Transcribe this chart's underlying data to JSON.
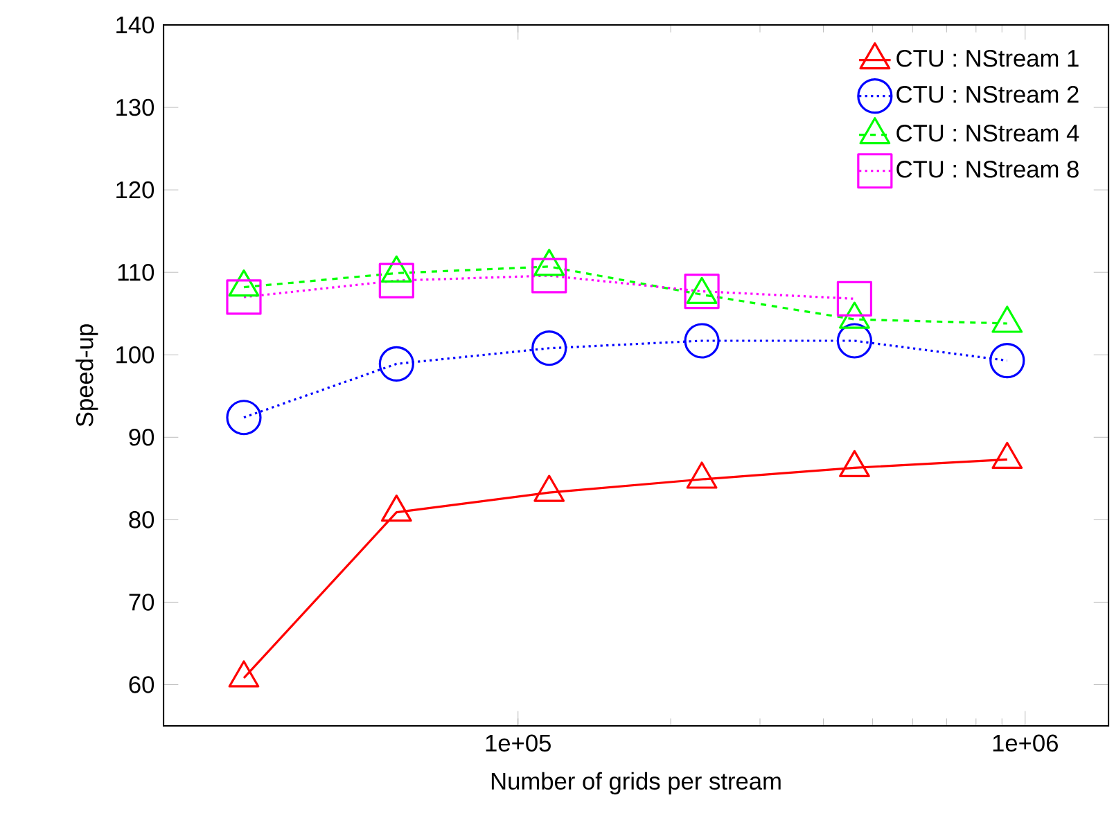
{
  "chart_data": {
    "type": "line",
    "xlabel": "Number of grids per stream",
    "ylabel": "Speed-up",
    "log": "x",
    "xlim": [
      20000,
      1460000
    ],
    "xticks": [
      {
        "value": 100000,
        "label": "1e+05"
      },
      {
        "value": 1000000,
        "label": "1e+06"
      }
    ],
    "ylim": [
      55,
      140
    ],
    "yticks": [
      60,
      70,
      80,
      90,
      100,
      110,
      120,
      130,
      140
    ],
    "legend": "top right",
    "series": [
      {
        "name": "CTU : NStream 1",
        "color": "#ff0000",
        "marker": "triangle",
        "line_style": "solid",
        "x": [
          28800,
          57600,
          115200,
          230400,
          460800,
          921600
        ],
        "values": [
          60.8,
          80.9,
          83.3,
          84.9,
          86.3,
          87.3
        ]
      },
      {
        "name": "CTU : NStream 2",
        "color": "#0000ff",
        "marker": "circle",
        "line_style": "dotted",
        "x": [
          28800,
          57600,
          115200,
          230400,
          460800,
          921600
        ],
        "values": [
          92.4,
          98.9,
          100.8,
          101.7,
          101.7,
          99.3
        ]
      },
      {
        "name": "CTU : NStream 4",
        "color": "#00ff00",
        "marker": "triangle",
        "line_style": "dashed",
        "x": [
          28800,
          57600,
          115200,
          230400,
          460800,
          921600
        ],
        "values": [
          108.2,
          109.9,
          110.7,
          107.3,
          104.3,
          103.8
        ]
      },
      {
        "name": "CTU : NStream 8",
        "color": "#ff00ff",
        "marker": "square",
        "line_style": "dotted",
        "x": [
          28800,
          57600,
          115200,
          230400,
          460800
        ],
        "values": [
          107.0,
          109.0,
          109.6,
          107.7,
          106.8
        ]
      }
    ]
  }
}
